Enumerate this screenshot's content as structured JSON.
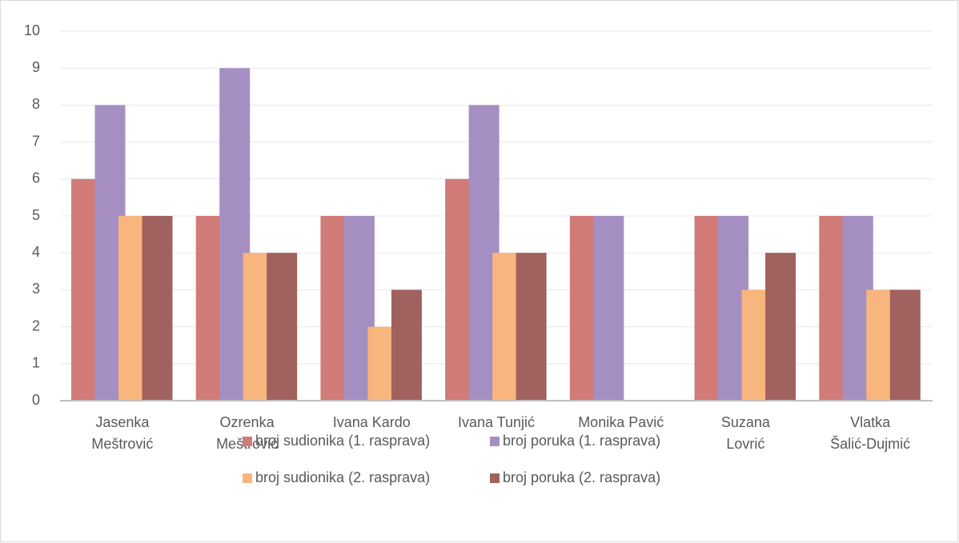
{
  "chart_data": {
    "type": "bar",
    "categories": [
      "Jasenka Meštrović",
      "Ozrenka Meštrović",
      "Ivana Kardo",
      "Ivana Tunjić",
      "Monika Pavić",
      "Suzana Lovrić",
      "Vlatka Šalić-Dujmić"
    ],
    "series": [
      {
        "name": "broj sudionika (1. rasprava)",
        "color": "#d07b78",
        "values": [
          6,
          5,
          5,
          6,
          5,
          5,
          5
        ]
      },
      {
        "name": "broj poruka (1. rasprava)",
        "color": "#a58fc2",
        "values": [
          8,
          9,
          5,
          8,
          5,
          5,
          5
        ]
      },
      {
        "name": "broj sudionika (2. rasprava)",
        "color": "#f8b57d",
        "values": [
          5,
          4,
          2,
          4,
          0,
          3,
          3
        ]
      },
      {
        "name": "broj poruka (2. rasprava)",
        "color": "#a0625f",
        "values": [
          5,
          4,
          3,
          4,
          0,
          4,
          3
        ]
      }
    ],
    "ylim": [
      0,
      10
    ],
    "yticks": [
      0,
      1,
      2,
      3,
      4,
      5,
      6,
      7,
      8,
      9,
      10
    ],
    "grid": true,
    "legend": "bottom"
  }
}
